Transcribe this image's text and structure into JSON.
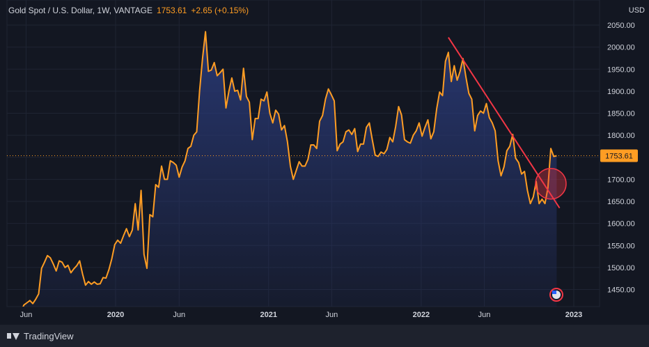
{
  "header": {
    "symbol": "Gold Spot / U.S. Dollar, 1W, VANTAGE",
    "last": "1753.61",
    "change": "+2.65 (+0.15%)"
  },
  "axis": {
    "currency": "USD"
  },
  "brand": {
    "name": "TradingView"
  },
  "colors": {
    "background": "#131722",
    "line": "#ff9d23",
    "area_top": "#2a3a78",
    "trendline": "#f23645",
    "grid": "#1f2433",
    "price_label_bg": "#ff9d23"
  },
  "chart_data": {
    "type": "area",
    "title": "Gold Spot / U.S. Dollar, 1W, VANTAGE",
    "x_range": [
      "2019-05-20",
      "2022-11-21"
    ],
    "ylim": [
      1415,
      2070
    ],
    "grid": true,
    "x_ticks": [
      {
        "label": "Jun",
        "date": "2019-06-01"
      },
      {
        "label": "2020",
        "date": "2020-01-01"
      },
      {
        "label": "Jun",
        "date": "2020-06-01"
      },
      {
        "label": "2021",
        "date": "2021-01-01"
      },
      {
        "label": "Jun",
        "date": "2021-06-01"
      },
      {
        "label": "2022",
        "date": "2022-01-01"
      },
      {
        "label": "Jun",
        "date": "2022-06-01"
      },
      {
        "label": "2023",
        "date": "2023-01-01"
      }
    ],
    "y_ticks": [
      {
        "label": "1450.00",
        "value": 1450
      },
      {
        "label": "1500.00",
        "value": 1500
      },
      {
        "label": "1550.00",
        "value": 1550
      },
      {
        "label": "1600.00",
        "value": 1600
      },
      {
        "label": "1650.00",
        "value": 1650
      },
      {
        "label": "1700.00",
        "value": 1700
      },
      {
        "label": "1750.00",
        "value": 1750
      },
      {
        "label": "1800.00",
        "value": 1800
      },
      {
        "label": "1850.00",
        "value": 1850
      },
      {
        "label": "1900.00",
        "value": 1900
      },
      {
        "label": "1950.00",
        "value": 1950
      },
      {
        "label": "2000.00",
        "value": 2000
      },
      {
        "label": "2050.00",
        "value": 2050
      }
    ],
    "current_price": {
      "label": "1753.61",
      "value": 1753.61
    },
    "trendline": {
      "from": {
        "date": "2022-03-07",
        "value": 2022
      },
      "to": {
        "date": "2022-11-28",
        "value": 1635
      }
    },
    "annotation": {
      "type": "circle",
      "date": "2022-11-07",
      "value": 1690
    },
    "series": [
      {
        "values": [
          [
            "2019-05-20",
            1402
          ],
          [
            "2019-05-27",
            1415
          ],
          [
            "2019-06-03",
            1420
          ],
          [
            "2019-06-10",
            1425
          ],
          [
            "2019-06-17",
            1418
          ],
          [
            "2019-06-24",
            1428
          ],
          [
            "2019-07-01",
            1440
          ],
          [
            "2019-07-08",
            1498
          ],
          [
            "2019-07-15",
            1512
          ],
          [
            "2019-07-22",
            1527
          ],
          [
            "2019-07-29",
            1522
          ],
          [
            "2019-08-05",
            1508
          ],
          [
            "2019-08-12",
            1492
          ],
          [
            "2019-08-19",
            1515
          ],
          [
            "2019-08-26",
            1512
          ],
          [
            "2019-09-02",
            1500
          ],
          [
            "2019-09-09",
            1505
          ],
          [
            "2019-09-16",
            1488
          ],
          [
            "2019-09-23",
            1497
          ],
          [
            "2019-09-30",
            1504
          ],
          [
            "2019-10-07",
            1515
          ],
          [
            "2019-10-14",
            1485
          ],
          [
            "2019-10-21",
            1460
          ],
          [
            "2019-10-28",
            1468
          ],
          [
            "2019-11-04",
            1462
          ],
          [
            "2019-11-11",
            1467
          ],
          [
            "2019-11-18",
            1462
          ],
          [
            "2019-11-25",
            1463
          ],
          [
            "2019-12-02",
            1477
          ],
          [
            "2019-12-09",
            1476
          ],
          [
            "2019-12-16",
            1495
          ],
          [
            "2019-12-23",
            1520
          ],
          [
            "2019-12-30",
            1552
          ],
          [
            "2020-01-06",
            1562
          ],
          [
            "2020-01-13",
            1555
          ],
          [
            "2020-01-20",
            1572
          ],
          [
            "2020-01-27",
            1588
          ],
          [
            "2020-02-03",
            1570
          ],
          [
            "2020-02-10",
            1585
          ],
          [
            "2020-02-17",
            1645
          ],
          [
            "2020-02-24",
            1585
          ],
          [
            "2020-03-02",
            1675
          ],
          [
            "2020-03-09",
            1530
          ],
          [
            "2020-03-16",
            1498
          ],
          [
            "2020-03-23",
            1620
          ],
          [
            "2020-03-30",
            1615
          ],
          [
            "2020-04-06",
            1688
          ],
          [
            "2020-04-13",
            1682
          ],
          [
            "2020-04-20",
            1730
          ],
          [
            "2020-04-27",
            1700
          ],
          [
            "2020-05-04",
            1700
          ],
          [
            "2020-05-11",
            1742
          ],
          [
            "2020-05-18",
            1738
          ],
          [
            "2020-05-25",
            1732
          ],
          [
            "2020-06-01",
            1705
          ],
          [
            "2020-06-08",
            1728
          ],
          [
            "2020-06-15",
            1742
          ],
          [
            "2020-06-22",
            1770
          ],
          [
            "2020-06-29",
            1775
          ],
          [
            "2020-07-06",
            1800
          ],
          [
            "2020-07-13",
            1808
          ],
          [
            "2020-07-20",
            1902
          ],
          [
            "2020-07-27",
            1975
          ],
          [
            "2020-08-03",
            2035
          ],
          [
            "2020-08-10",
            1945
          ],
          [
            "2020-08-17",
            1948
          ],
          [
            "2020-08-24",
            1965
          ],
          [
            "2020-08-31",
            1935
          ],
          [
            "2020-09-07",
            1942
          ],
          [
            "2020-09-14",
            1950
          ],
          [
            "2020-09-21",
            1862
          ],
          [
            "2020-09-28",
            1900
          ],
          [
            "2020-10-05",
            1930
          ],
          [
            "2020-10-12",
            1900
          ],
          [
            "2020-10-19",
            1902
          ],
          [
            "2020-10-26",
            1880
          ],
          [
            "2020-11-02",
            1952
          ],
          [
            "2020-11-09",
            1888
          ],
          [
            "2020-11-16",
            1875
          ],
          [
            "2020-11-23",
            1790
          ],
          [
            "2020-11-30",
            1838
          ],
          [
            "2020-12-07",
            1838
          ],
          [
            "2020-12-14",
            1882
          ],
          [
            "2020-12-21",
            1878
          ],
          [
            "2020-12-28",
            1898
          ],
          [
            "2021-01-04",
            1850
          ],
          [
            "2021-01-11",
            1828
          ],
          [
            "2021-01-18",
            1857
          ],
          [
            "2021-01-25",
            1848
          ],
          [
            "2021-02-01",
            1812
          ],
          [
            "2021-02-08",
            1822
          ],
          [
            "2021-02-15",
            1785
          ],
          [
            "2021-02-22",
            1730
          ],
          [
            "2021-03-01",
            1700
          ],
          [
            "2021-03-08",
            1720
          ],
          [
            "2021-03-15",
            1740
          ],
          [
            "2021-03-22",
            1730
          ],
          [
            "2021-03-29",
            1730
          ],
          [
            "2021-04-05",
            1745
          ],
          [
            "2021-04-12",
            1778
          ],
          [
            "2021-04-19",
            1778
          ],
          [
            "2021-04-26",
            1770
          ],
          [
            "2021-05-03",
            1832
          ],
          [
            "2021-05-10",
            1845
          ],
          [
            "2021-05-17",
            1882
          ],
          [
            "2021-05-24",
            1905
          ],
          [
            "2021-05-31",
            1892
          ],
          [
            "2021-06-07",
            1878
          ],
          [
            "2021-06-14",
            1765
          ],
          [
            "2021-06-21",
            1780
          ],
          [
            "2021-06-28",
            1785
          ],
          [
            "2021-07-05",
            1808
          ],
          [
            "2021-07-12",
            1812
          ],
          [
            "2021-07-19",
            1802
          ],
          [
            "2021-07-26",
            1815
          ],
          [
            "2021-08-02",
            1763
          ],
          [
            "2021-08-09",
            1780
          ],
          [
            "2021-08-16",
            1780
          ],
          [
            "2021-08-23",
            1818
          ],
          [
            "2021-08-30",
            1828
          ],
          [
            "2021-09-06",
            1790
          ],
          [
            "2021-09-13",
            1755
          ],
          [
            "2021-09-20",
            1752
          ],
          [
            "2021-09-27",
            1762
          ],
          [
            "2021-10-04",
            1758
          ],
          [
            "2021-10-11",
            1768
          ],
          [
            "2021-10-18",
            1795
          ],
          [
            "2021-10-25",
            1785
          ],
          [
            "2021-11-01",
            1820
          ],
          [
            "2021-11-08",
            1865
          ],
          [
            "2021-11-15",
            1846
          ],
          [
            "2021-11-22",
            1790
          ],
          [
            "2021-11-29",
            1785
          ],
          [
            "2021-12-06",
            1782
          ],
          [
            "2021-12-13",
            1800
          ],
          [
            "2021-12-20",
            1810
          ],
          [
            "2021-12-27",
            1828
          ],
          [
            "2022-01-03",
            1798
          ],
          [
            "2022-01-10",
            1818
          ],
          [
            "2022-01-17",
            1835
          ],
          [
            "2022-01-24",
            1792
          ],
          [
            "2022-01-31",
            1808
          ],
          [
            "2022-02-07",
            1860
          ],
          [
            "2022-02-14",
            1898
          ],
          [
            "2022-02-21",
            1890
          ],
          [
            "2022-02-28",
            1968
          ],
          [
            "2022-03-07",
            1988
          ],
          [
            "2022-03-14",
            1922
          ],
          [
            "2022-03-21",
            1958
          ],
          [
            "2022-03-28",
            1925
          ],
          [
            "2022-04-04",
            1945
          ],
          [
            "2022-04-11",
            1974
          ],
          [
            "2022-04-18",
            1932
          ],
          [
            "2022-04-25",
            1895
          ],
          [
            "2022-05-02",
            1882
          ],
          [
            "2022-05-09",
            1810
          ],
          [
            "2022-05-16",
            1845
          ],
          [
            "2022-05-23",
            1855
          ],
          [
            "2022-05-30",
            1850
          ],
          [
            "2022-06-06",
            1872
          ],
          [
            "2022-06-13",
            1840
          ],
          [
            "2022-06-20",
            1828
          ],
          [
            "2022-06-27",
            1810
          ],
          [
            "2022-07-04",
            1742
          ],
          [
            "2022-07-11",
            1708
          ],
          [
            "2022-07-18",
            1728
          ],
          [
            "2022-07-25",
            1765
          ],
          [
            "2022-08-01",
            1775
          ],
          [
            "2022-08-08",
            1802
          ],
          [
            "2022-08-15",
            1748
          ],
          [
            "2022-08-22",
            1738
          ],
          [
            "2022-08-29",
            1712
          ],
          [
            "2022-09-05",
            1718
          ],
          [
            "2022-09-12",
            1675
          ],
          [
            "2022-09-19",
            1645
          ],
          [
            "2022-09-26",
            1660
          ],
          [
            "2022-10-03",
            1695
          ],
          [
            "2022-10-10",
            1645
          ],
          [
            "2022-10-17",
            1655
          ],
          [
            "2022-10-24",
            1645
          ],
          [
            "2022-10-31",
            1680
          ],
          [
            "2022-11-07",
            1770
          ],
          [
            "2022-11-14",
            1752
          ],
          [
            "2022-11-21",
            1753.61
          ]
        ]
      }
    ]
  }
}
